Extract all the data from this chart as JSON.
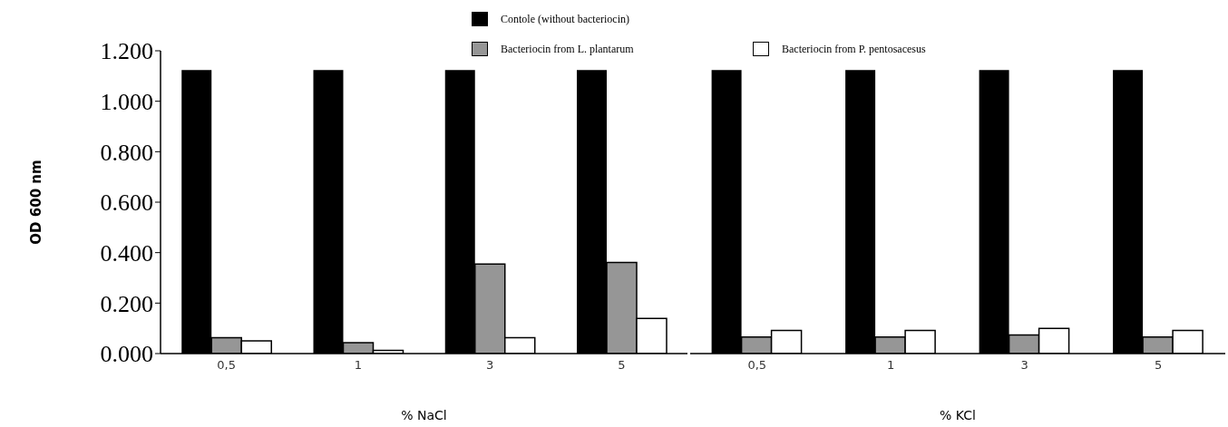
{
  "chart_data": [
    {
      "type": "bar",
      "xlabel": "% NaCl",
      "ylabel": "OD 600 nm",
      "categories": [
        "0,5",
        "1",
        "3",
        "5"
      ],
      "series": [
        {
          "name": "Contole (without bacteriocin)",
          "color": "#000000",
          "values": [
            1.124,
            1.124,
            1.124,
            1.124
          ]
        },
        {
          "name": "Bacteriocin from L. plantarum",
          "color": "#969696",
          "values": [
            0.063,
            0.043,
            0.355,
            0.361
          ]
        },
        {
          "name": "Bacteriocin from P. pentosacesus",
          "color": "#ffffff",
          "values": [
            0.05,
            0.013,
            0.063,
            0.139
          ]
        }
      ],
      "ylim": [
        0,
        1.2
      ],
      "yticks": [
        {
          "value": 0,
          "label": "0.000"
        },
        {
          "value": 0.2,
          "label": "0.200"
        },
        {
          "value": 0.4,
          "label": "0.400"
        },
        {
          "value": 0.6,
          "label": "0.600"
        },
        {
          "value": 0.8,
          "label": "0.800"
        },
        {
          "value": 1,
          "label": "1.000"
        },
        {
          "value": 1.2,
          "label": "1.200"
        }
      ],
      "grid": false,
      "legend": "top"
    },
    {
      "type": "bar",
      "xlabel": "% KCl",
      "categories": [
        "0,5",
        "1",
        "3",
        "5"
      ],
      "series": [
        {
          "color": "#000000",
          "values": [
            1.124,
            1.124,
            1.124,
            1.124
          ]
        },
        {
          "color": "#969696",
          "values": [
            0.066,
            0.066,
            0.074,
            0.066
          ]
        },
        {
          "color": "#ffffff",
          "values": [
            0.092,
            0.092,
            0.1,
            0.092
          ]
        }
      ],
      "ylim": [
        0,
        1.2
      ],
      "tick_labels": "x",
      "grid": false,
      "legend": false
    }
  ]
}
